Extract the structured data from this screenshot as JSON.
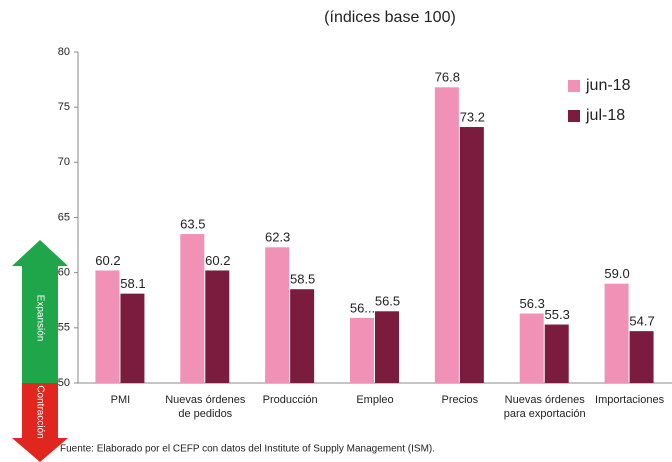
{
  "chart_data": {
    "type": "bar",
    "title": "(índices base 100)",
    "categories": [
      "PMI",
      "Nuevas órdenes de pedidos",
      "Producción",
      "Empleo",
      "Precios",
      "Nuevas órdenes para exportación",
      "Importaciones"
    ],
    "series": [
      {
        "name": "jun-18",
        "color": "#f191b6",
        "values": [
          60.2,
          63.5,
          62.3,
          55.9,
          76.8,
          56.3,
          59.0
        ],
        "value_labels": [
          "60.2",
          "63.5",
          "62.3",
          "56...",
          "76.8",
          "56.3",
          "59.0"
        ]
      },
      {
        "name": "jul-18",
        "color": "#7b1c3e",
        "values": [
          58.1,
          60.2,
          58.5,
          56.5,
          73.2,
          55.3,
          54.7
        ],
        "value_labels": [
          "58.1",
          "60.2",
          "58.5",
          "56.5",
          "73.2",
          "55.3",
          "54.7"
        ]
      }
    ],
    "ylim": [
      50,
      80
    ],
    "yticks": [
      50,
      55,
      60,
      65,
      70,
      75,
      80
    ],
    "legend": "upper right",
    "annotations": {
      "up": "Expansión",
      "down": "Contracción"
    },
    "source": "Fuente: Elaborado por el CEFP con datos del Institute of Supply Management (ISM)."
  }
}
